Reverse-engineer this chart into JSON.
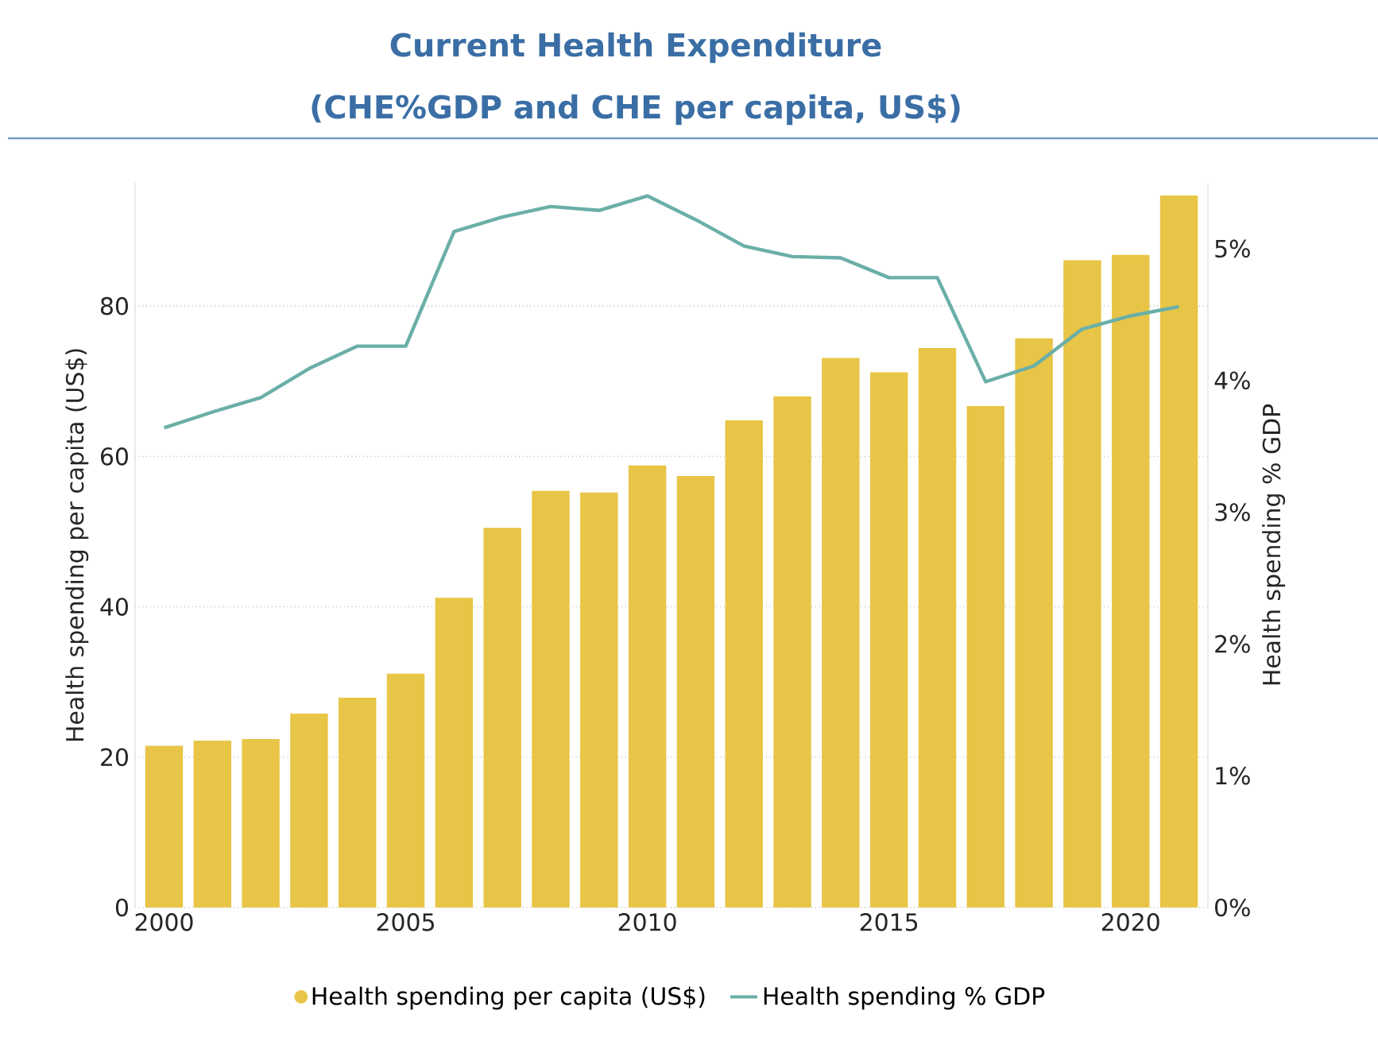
{
  "chart_data": {
    "type": "bar",
    "title": "Current Health Expenditure",
    "subtitle": "(CHE%GDP and CHE per capita, US$)",
    "ylabel": "Health spending per capita (US$)",
    "y2label": "Health spending % GDP",
    "x": [
      2000,
      2001,
      2002,
      2003,
      2004,
      2005,
      2006,
      2007,
      2008,
      2009,
      2010,
      2011,
      2012,
      2013,
      2014,
      2015,
      2016,
      2017,
      2018,
      2019,
      2020,
      2021
    ],
    "xlim": [
      1999.4,
      2021.6
    ],
    "xticks": [
      2000,
      2005,
      2010,
      2015,
      2020
    ],
    "ylim": [
      0,
      96.4
    ],
    "yticks": [
      0,
      20,
      40,
      60,
      80
    ],
    "y2lim": [
      0,
      5.5
    ],
    "y2ticks": [
      {
        "value": 0,
        "label": "0%"
      },
      {
        "value": 1,
        "label": "1%"
      },
      {
        "value": 2,
        "label": "2%"
      },
      {
        "value": 3,
        "label": "3%"
      },
      {
        "value": 4,
        "label": "4%"
      },
      {
        "value": 5,
        "label": "5%"
      }
    ],
    "grid": "y",
    "legend": "bottom",
    "series": [
      {
        "name": "Health spending per capita (US$)",
        "color": "#e8c547",
        "values": [
          21.5,
          22.2,
          22.4,
          25.8,
          27.9,
          31.1,
          41.2,
          50.5,
          55.4,
          55.2,
          58.8,
          57.4,
          64.8,
          68.0,
          73.1,
          71.2,
          74.4,
          66.7,
          75.7,
          86.1,
          86.8,
          94.7
        ]
      },
      {
        "name": "Health spending % GDP",
        "type": "line",
        "axis": "y2",
        "color": "#6aafa8",
        "values": [
          3.64,
          3.76,
          3.87,
          4.09,
          4.26,
          4.26,
          5.13,
          5.24,
          5.32,
          5.29,
          5.4,
          5.22,
          5.02,
          4.94,
          4.93,
          4.78,
          4.78,
          3.99,
          4.11,
          4.39,
          4.49,
          4.56
        ]
      }
    ]
  }
}
